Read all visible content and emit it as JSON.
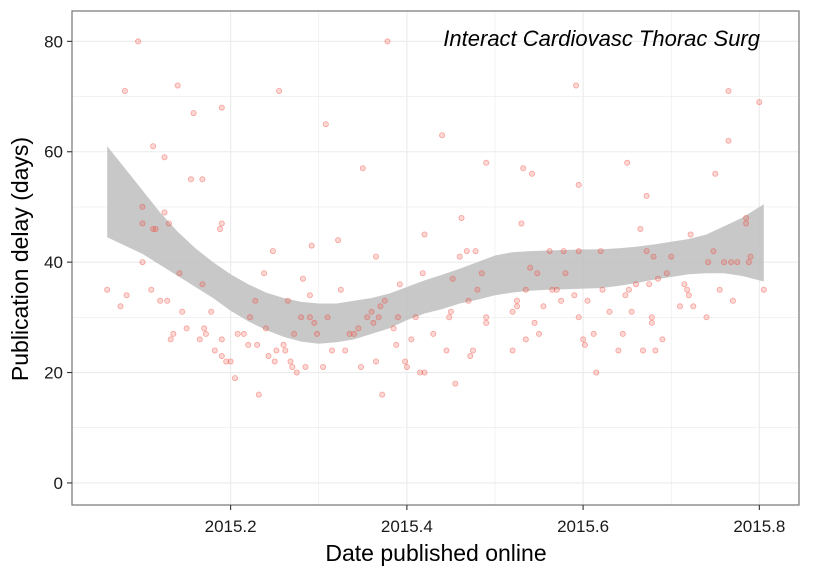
{
  "chart_data": {
    "type": "scatter",
    "title": "",
    "annotation": "Interact Cardiovasc Thorac Surg",
    "xlabel": "Date published online",
    "ylabel": "Publication delay (days)",
    "xlim": [
      2015.02,
      2015.845
    ],
    "ylim": [
      -4,
      85.5
    ],
    "x_ticks": [
      2015.2,
      2015.4,
      2015.6,
      2015.8
    ],
    "x_tick_labels": [
      "2015.2",
      "2015.4",
      "2015.6",
      "2015.8"
    ],
    "y_ticks": [
      0,
      20,
      40,
      60,
      80
    ],
    "y_tick_labels": [
      "0",
      "20",
      "40",
      "60",
      "80"
    ],
    "grid": true,
    "colors": {
      "points": "#f04a3a",
      "band": "#bebebe",
      "grid": "#ebebeb",
      "panel_border": "#7f7f7f"
    },
    "points": [
      [
        2015.06,
        35
      ],
      [
        2015.075,
        32
      ],
      [
        2015.08,
        71
      ],
      [
        2015.082,
        34
      ],
      [
        2015.095,
        80
      ],
      [
        2015.1,
        50
      ],
      [
        2015.1,
        47
      ],
      [
        2015.1,
        40
      ],
      [
        2015.11,
        35
      ],
      [
        2015.112,
        61
      ],
      [
        2015.112,
        46
      ],
      [
        2015.115,
        46
      ],
      [
        2015.12,
        33
      ],
      [
        2015.125,
        59
      ],
      [
        2015.125,
        49
      ],
      [
        2015.128,
        33
      ],
      [
        2015.13,
        47
      ],
      [
        2015.132,
        26
      ],
      [
        2015.135,
        27
      ],
      [
        2015.14,
        72
      ],
      [
        2015.142,
        38
      ],
      [
        2015.145,
        31
      ],
      [
        2015.15,
        28
      ],
      [
        2015.155,
        55
      ],
      [
        2015.158,
        67
      ],
      [
        2015.165,
        26
      ],
      [
        2015.168,
        55
      ],
      [
        2015.168,
        36
      ],
      [
        2015.17,
        28
      ],
      [
        2015.172,
        27
      ],
      [
        2015.178,
        31
      ],
      [
        2015.182,
        24
      ],
      [
        2015.188,
        46
      ],
      [
        2015.19,
        47
      ],
      [
        2015.19,
        68
      ],
      [
        2015.19,
        26
      ],
      [
        2015.19,
        23
      ],
      [
        2015.195,
        22
      ],
      [
        2015.2,
        22
      ],
      [
        2015.205,
        19
      ],
      [
        2015.208,
        27
      ],
      [
        2015.215,
        27
      ],
      [
        2015.22,
        25
      ],
      [
        2015.222,
        30
      ],
      [
        2015.228,
        33
      ],
      [
        2015.23,
        25
      ],
      [
        2015.232,
        16
      ],
      [
        2015.238,
        38
      ],
      [
        2015.24,
        28
      ],
      [
        2015.243,
        23
      ],
      [
        2015.248,
        42
      ],
      [
        2015.25,
        22
      ],
      [
        2015.252,
        24
      ],
      [
        2015.255,
        71
      ],
      [
        2015.26,
        25
      ],
      [
        2015.262,
        24
      ],
      [
        2015.265,
        33
      ],
      [
        2015.268,
        22
      ],
      [
        2015.27,
        21
      ],
      [
        2015.272,
        27
      ],
      [
        2015.275,
        20
      ],
      [
        2015.28,
        30
      ],
      [
        2015.282,
        37
      ],
      [
        2015.285,
        21
      ],
      [
        2015.29,
        30
      ],
      [
        2015.29,
        34
      ],
      [
        2015.292,
        43
      ],
      [
        2015.295,
        29
      ],
      [
        2015.298,
        27
      ],
      [
        2015.305,
        21
      ],
      [
        2015.308,
        65
      ],
      [
        2015.31,
        30
      ],
      [
        2015.315,
        24
      ],
      [
        2015.322,
        44
      ],
      [
        2015.325,
        35
      ],
      [
        2015.33,
        24
      ],
      [
        2015.335,
        27
      ],
      [
        2015.34,
        27
      ],
      [
        2015.345,
        28
      ],
      [
        2015.348,
        21
      ],
      [
        2015.35,
        57
      ],
      [
        2015.355,
        30
      ],
      [
        2015.36,
        31
      ],
      [
        2015.362,
        29
      ],
      [
        2015.365,
        22
      ],
      [
        2015.365,
        41
      ],
      [
        2015.368,
        30
      ],
      [
        2015.37,
        32
      ],
      [
        2015.372,
        16
      ],
      [
        2015.375,
        33
      ],
      [
        2015.378,
        80
      ],
      [
        2015.385,
        28
      ],
      [
        2015.388,
        25
      ],
      [
        2015.39,
        30
      ],
      [
        2015.392,
        36
      ],
      [
        2015.398,
        22
      ],
      [
        2015.4,
        21
      ],
      [
        2015.405,
        26
      ],
      [
        2015.41,
        30
      ],
      [
        2015.415,
        20
      ],
      [
        2015.418,
        38
      ],
      [
        2015.42,
        45
      ],
      [
        2015.42,
        20
      ],
      [
        2015.43,
        27
      ],
      [
        2015.44,
        63
      ],
      [
        2015.445,
        24
      ],
      [
        2015.448,
        30
      ],
      [
        2015.45,
        31
      ],
      [
        2015.452,
        37
      ],
      [
        2015.455,
        18
      ],
      [
        2015.46,
        41
      ],
      [
        2015.462,
        48
      ],
      [
        2015.468,
        42
      ],
      [
        2015.47,
        33
      ],
      [
        2015.472,
        23
      ],
      [
        2015.475,
        24
      ],
      [
        2015.478,
        42
      ],
      [
        2015.48,
        35
      ],
      [
        2015.485,
        38
      ],
      [
        2015.49,
        58
      ],
      [
        2015.49,
        29
      ],
      [
        2015.49,
        30
      ],
      [
        2015.52,
        24
      ],
      [
        2015.52,
        31
      ],
      [
        2015.525,
        32
      ],
      [
        2015.525,
        33
      ],
      [
        2015.53,
        47
      ],
      [
        2015.532,
        57
      ],
      [
        2015.535,
        35
      ],
      [
        2015.535,
        26
      ],
      [
        2015.54,
        39
      ],
      [
        2015.542,
        56
      ],
      [
        2015.545,
        29
      ],
      [
        2015.548,
        38
      ],
      [
        2015.55,
        27
      ],
      [
        2015.555,
        32
      ],
      [
        2015.562,
        42
      ],
      [
        2015.565,
        35
      ],
      [
        2015.57,
        35
      ],
      [
        2015.575,
        33
      ],
      [
        2015.578,
        42
      ],
      [
        2015.58,
        38
      ],
      [
        2015.59,
        34
      ],
      [
        2015.592,
        72
      ],
      [
        2015.595,
        54
      ],
      [
        2015.595,
        30
      ],
      [
        2015.595,
        42
      ],
      [
        2015.6,
        26
      ],
      [
        2015.602,
        25
      ],
      [
        2015.605,
        33
      ],
      [
        2015.612,
        27
      ],
      [
        2015.615,
        20
      ],
      [
        2015.62,
        42
      ],
      [
        2015.622,
        35
      ],
      [
        2015.63,
        31
      ],
      [
        2015.64,
        24
      ],
      [
        2015.645,
        27
      ],
      [
        2015.648,
        34
      ],
      [
        2015.65,
        58
      ],
      [
        2015.652,
        35
      ],
      [
        2015.655,
        31
      ],
      [
        2015.66,
        36
      ],
      [
        2015.665,
        46
      ],
      [
        2015.668,
        24
      ],
      [
        2015.672,
        42
      ],
      [
        2015.672,
        52
      ],
      [
        2015.675,
        36
      ],
      [
        2015.678,
        30
      ],
      [
        2015.678,
        29
      ],
      [
        2015.68,
        41
      ],
      [
        2015.682,
        24
      ],
      [
        2015.685,
        37
      ],
      [
        2015.69,
        26
      ],
      [
        2015.695,
        38
      ],
      [
        2015.7,
        41
      ],
      [
        2015.71,
        32
      ],
      [
        2015.715,
        36
      ],
      [
        2015.718,
        35
      ],
      [
        2015.72,
        34
      ],
      [
        2015.722,
        45
      ],
      [
        2015.725,
        32
      ],
      [
        2015.74,
        30
      ],
      [
        2015.742,
        40
      ],
      [
        2015.748,
        42
      ],
      [
        2015.75,
        56
      ],
      [
        2015.755,
        35
      ],
      [
        2015.76,
        40
      ],
      [
        2015.765,
        71
      ],
      [
        2015.765,
        62
      ],
      [
        2015.768,
        40
      ],
      [
        2015.77,
        33
      ],
      [
        2015.775,
        40
      ],
      [
        2015.785,
        47
      ],
      [
        2015.785,
        48
      ],
      [
        2015.788,
        40
      ],
      [
        2015.79,
        41
      ],
      [
        2015.8,
        69
      ],
      [
        2015.805,
        35
      ]
    ],
    "smooth_band": {
      "x": [
        2015.06,
        2015.08,
        2015.1,
        2015.12,
        2015.14,
        2015.16,
        2015.18,
        2015.2,
        2015.22,
        2015.24,
        2015.26,
        2015.28,
        2015.3,
        2015.32,
        2015.34,
        2015.36,
        2015.38,
        2015.4,
        2015.42,
        2015.44,
        2015.46,
        2015.48,
        2015.5,
        2015.52,
        2015.54,
        2015.56,
        2015.58,
        2015.6,
        2015.62,
        2015.64,
        2015.66,
        2015.68,
        2015.7,
        2015.72,
        2015.74,
        2015.76,
        2015.78,
        2015.805
      ],
      "upper": [
        61,
        57,
        53,
        49,
        45.5,
        42.5,
        40,
        37.8,
        36,
        34.5,
        33.5,
        32.8,
        32.5,
        32.5,
        33,
        33.5,
        34.3,
        35.5,
        36.7,
        37.7,
        38.8,
        40,
        41.2,
        41.8,
        42,
        42.1,
        42.2,
        42.3,
        42.3,
        42.5,
        42.8,
        43.2,
        43.7,
        44.2,
        45,
        46.5,
        48,
        50.5
      ],
      "lower": [
        44.5,
        43,
        41.5,
        39.5,
        37.5,
        35.5,
        33.5,
        31.2,
        29.3,
        27.7,
        26.5,
        25.6,
        25.2,
        25.5,
        26,
        27,
        28,
        29.5,
        30.7,
        31.5,
        32.5,
        33.2,
        34,
        34.5,
        34.8,
        35,
        35.1,
        35.2,
        35.3,
        35.7,
        36.2,
        36.8,
        37.3,
        37.8,
        38,
        38,
        37.5,
        36.5
      ]
    }
  }
}
